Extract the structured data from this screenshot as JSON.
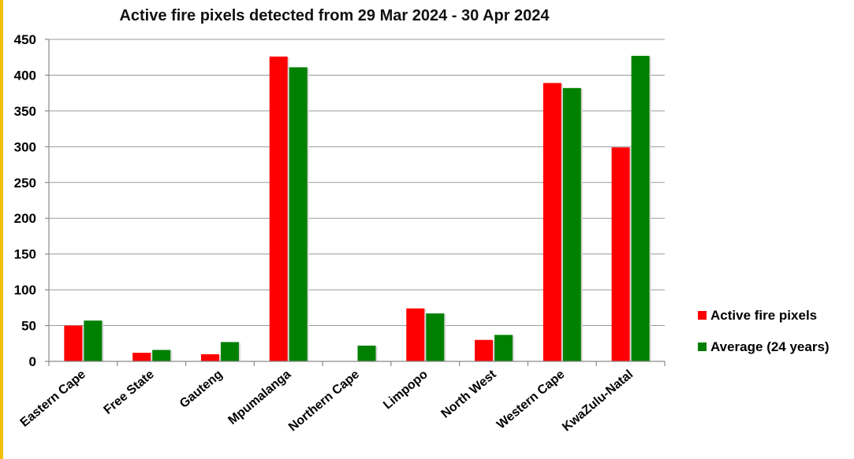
{
  "chart_data": {
    "type": "bar",
    "title": "Active fire pixels detected from 29 Mar 2024 - 30 Apr 2024",
    "xlabel": "",
    "ylabel": "",
    "ylim": [
      0,
      450
    ],
    "yticks": [
      0,
      50,
      100,
      150,
      200,
      250,
      300,
      350,
      400,
      450
    ],
    "grid": true,
    "legend_position": "right",
    "categories": [
      "Eastern Cape",
      "Free State",
      "Gauteng",
      "Mpumalanga",
      "Northern Cape",
      "Limpopo",
      "North West",
      "Western Cape",
      "KwaZulu-Natal"
    ],
    "series": [
      {
        "name": "Active fire pixels",
        "color": "#ff0000",
        "values": [
          50,
          12,
          10,
          426,
          0,
          74,
          30,
          389,
          299
        ]
      },
      {
        "name": "Average (24 years)",
        "color": "#008000",
        "values": [
          57,
          16,
          27,
          411,
          22,
          67,
          37,
          382,
          427
        ]
      }
    ]
  }
}
